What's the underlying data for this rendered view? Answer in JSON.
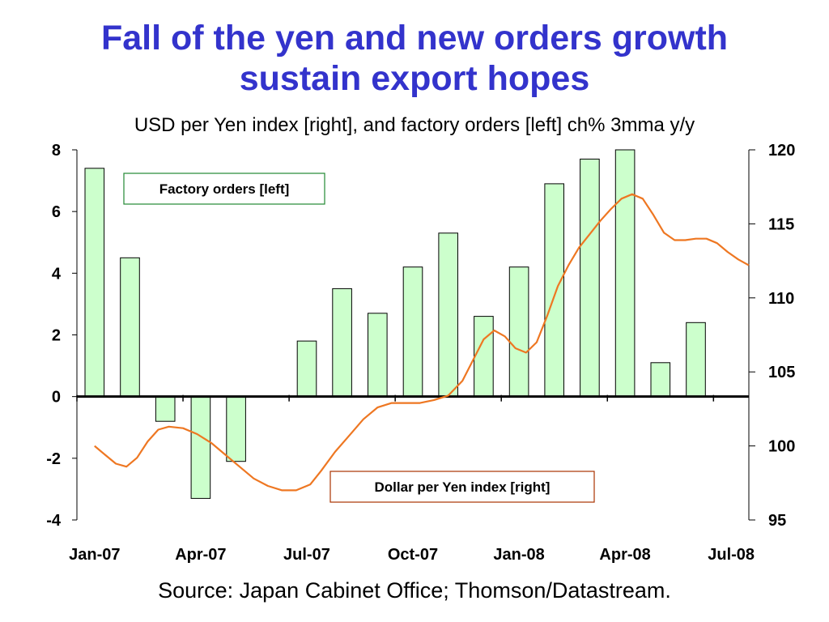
{
  "page": {
    "title_line1": "Fall of the yen and new orders growth",
    "title_line2": "sustain export hopes",
    "subtitle": "USD per Yen index [right], and factory orders [left] ch% 3mma y/y",
    "source": "Source: Japan Cabinet Office; Thomson/Datastream."
  },
  "chart_data": {
    "type": "bar+line",
    "title": "Fall of the yen and new orders growth sustain export hopes",
    "subtitle": "USD per Yen index [right], and factory orders [left] ch% 3mma y/y",
    "x_tick_labels": [
      "Jan-07",
      "Apr-07",
      "Jul-07",
      "Oct-07",
      "Jan-08",
      "Apr-08",
      "Jul-08"
    ],
    "months": [
      "Jan-07",
      "Feb-07",
      "Mar-07",
      "Apr-07",
      "May-07",
      "Jun-07",
      "Jul-07",
      "Aug-07",
      "Sep-07",
      "Oct-07",
      "Nov-07",
      "Dec-07",
      "Jan-08",
      "Feb-08",
      "Mar-08",
      "Apr-08",
      "May-08",
      "Jun-08",
      "Jul-08"
    ],
    "left_axis": {
      "ylim": [
        -4,
        8
      ],
      "ticks": [
        "8",
        "6",
        "4",
        "2",
        "0",
        "-2",
        "-4"
      ]
    },
    "right_axis": {
      "ylim": [
        95,
        120
      ],
      "ticks": [
        "120",
        "115",
        "110",
        "105",
        "100",
        "95"
      ]
    },
    "bars": {
      "name": "Factory orders [left]",
      "color": "#ccffcc",
      "values": [
        7.4,
        4.5,
        -0.8,
        -3.3,
        -2.1,
        null,
        1.8,
        3.5,
        2.7,
        4.2,
        5.3,
        2.6,
        4.2,
        6.9,
        7.7,
        8.0,
        1.1,
        2.4,
        null
      ]
    },
    "line": {
      "name": "Dollar per Yen index [right]",
      "color": "#ee7722",
      "points": [
        [
          0.0,
          100.0
        ],
        [
          0.3,
          99.4
        ],
        [
          0.6,
          98.8
        ],
        [
          0.9,
          98.6
        ],
        [
          1.2,
          99.2
        ],
        [
          1.5,
          100.3
        ],
        [
          1.8,
          101.1
        ],
        [
          2.1,
          101.3
        ],
        [
          2.5,
          101.2
        ],
        [
          2.9,
          100.8
        ],
        [
          3.3,
          100.2
        ],
        [
          3.7,
          99.4
        ],
        [
          4.1,
          98.6
        ],
        [
          4.5,
          97.8
        ],
        [
          4.9,
          97.3
        ],
        [
          5.3,
          97.0
        ],
        [
          5.7,
          97.0
        ],
        [
          6.1,
          97.4
        ],
        [
          6.4,
          98.3
        ],
        [
          6.8,
          99.6
        ],
        [
          7.2,
          100.7
        ],
        [
          7.6,
          101.8
        ],
        [
          8.0,
          102.6
        ],
        [
          8.4,
          102.9
        ],
        [
          8.8,
          102.9
        ],
        [
          9.2,
          102.9
        ],
        [
          9.6,
          103.1
        ],
        [
          10.0,
          103.4
        ],
        [
          10.4,
          104.4
        ],
        [
          10.7,
          105.8
        ],
        [
          11.0,
          107.2
        ],
        [
          11.3,
          107.8
        ],
        [
          11.6,
          107.4
        ],
        [
          11.9,
          106.6
        ],
        [
          12.2,
          106.3
        ],
        [
          12.5,
          107.0
        ],
        [
          12.8,
          108.8
        ],
        [
          13.1,
          110.8
        ],
        [
          13.4,
          112.2
        ],
        [
          13.7,
          113.4
        ],
        [
          14.0,
          114.3
        ],
        [
          14.3,
          115.2
        ],
        [
          14.6,
          116.0
        ],
        [
          14.9,
          116.7
        ],
        [
          15.2,
          117.0
        ],
        [
          15.5,
          116.7
        ],
        [
          15.8,
          115.6
        ],
        [
          16.1,
          114.4
        ],
        [
          16.4,
          113.9
        ],
        [
          16.7,
          113.9
        ],
        [
          17.0,
          114.0
        ],
        [
          17.3,
          114.0
        ],
        [
          17.6,
          113.7
        ],
        [
          17.9,
          113.1
        ],
        [
          18.2,
          112.6
        ],
        [
          18.5,
          112.2
        ]
      ]
    },
    "legend": [
      {
        "label": "Factory orders [left]",
        "border_color": "#228833",
        "placement": "top-left"
      },
      {
        "label": "Dollar per Yen index [right]",
        "border_color": "#aa3300",
        "placement": "bottom-center"
      }
    ]
  }
}
